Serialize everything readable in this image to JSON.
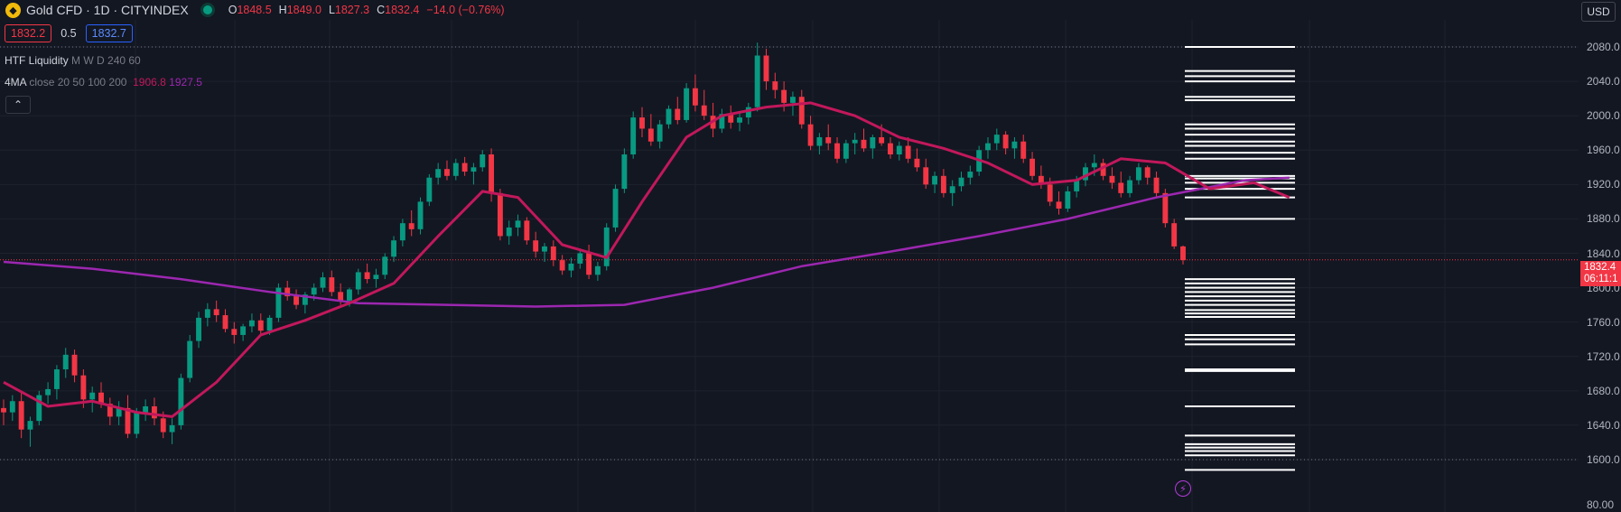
{
  "header": {
    "symbol_title": "Gold CFD · 1D · CITYINDEX",
    "logo_icon": "gold-bars-icon",
    "ohlc": {
      "o_label": "O",
      "o": "1848.5",
      "h_label": "H",
      "h": "1849.0",
      "l_label": "L",
      "l": "1827.3",
      "c_label": "C",
      "c": "1832.4",
      "change": "−14.0 (−0.76%)"
    }
  },
  "quote": {
    "sell": "1832.2",
    "spread": "0.5",
    "buy": "1832.7"
  },
  "indicators": {
    "htf": {
      "name": "HTF Liquidity",
      "params": "M W D 240 60"
    },
    "ma": {
      "name": "4MA",
      "params": "close 20 50 100 200",
      "v1": "1906.8",
      "v2": "1927.5"
    }
  },
  "collapse_icon": "chevron-up-icon",
  "currency_button": "USD",
  "price_axis": {
    "ticks": [
      "2080.0",
      "2040.0",
      "2000.0",
      "1960.0",
      "1920.0",
      "1880.0",
      "1840.0",
      "1800.0",
      "1760.0",
      "1720.0",
      "1680.0",
      "1640.0",
      "1600.0"
    ],
    "bottom_label": "80.00"
  },
  "last_price": {
    "value": "1832.4",
    "countdown": "06:11:1"
  },
  "bolt_icon": "lightning-icon",
  "colors": {
    "background": "#131722",
    "up": "#089981",
    "down": "#f23645",
    "ma_fast": "#c2185b",
    "ma_slow": "#9c27b0",
    "level_lines": "#ffffff"
  },
  "chart_data": {
    "type": "candlestick",
    "y_unit": "USD",
    "ylim": [
      1580,
      2095
    ],
    "last_close": 1832.4,
    "candles": [
      [
        1660,
        1670,
        1640,
        1655
      ],
      [
        1655,
        1675,
        1645,
        1668
      ],
      [
        1668,
        1680,
        1625,
        1635
      ],
      [
        1635,
        1650,
        1615,
        1645
      ],
      [
        1645,
        1680,
        1640,
        1675
      ],
      [
        1675,
        1690,
        1665,
        1682
      ],
      [
        1682,
        1710,
        1670,
        1705
      ],
      [
        1705,
        1730,
        1695,
        1722
      ],
      [
        1722,
        1728,
        1690,
        1698
      ],
      [
        1698,
        1705,
        1660,
        1670
      ],
      [
        1670,
        1685,
        1655,
        1678
      ],
      [
        1678,
        1690,
        1660,
        1665
      ],
      [
        1665,
        1672,
        1640,
        1650
      ],
      [
        1650,
        1668,
        1640,
        1660
      ],
      [
        1660,
        1675,
        1625,
        1630
      ],
      [
        1630,
        1660,
        1625,
        1655
      ],
      [
        1655,
        1670,
        1645,
        1662
      ],
      [
        1662,
        1672,
        1640,
        1648
      ],
      [
        1648,
        1656,
        1625,
        1632
      ],
      [
        1632,
        1648,
        1618,
        1640
      ],
      [
        1640,
        1700,
        1635,
        1695
      ],
      [
        1695,
        1745,
        1690,
        1738
      ],
      [
        1738,
        1772,
        1730,
        1765
      ],
      [
        1765,
        1782,
        1755,
        1775
      ],
      [
        1775,
        1785,
        1760,
        1768
      ],
      [
        1768,
        1775,
        1748,
        1752
      ],
      [
        1752,
        1760,
        1735,
        1745
      ],
      [
        1745,
        1758,
        1738,
        1755
      ],
      [
        1755,
        1770,
        1748,
        1762
      ],
      [
        1762,
        1770,
        1745,
        1750
      ],
      [
        1750,
        1768,
        1745,
        1765
      ],
      [
        1765,
        1805,
        1760,
        1800
      ],
      [
        1800,
        1808,
        1785,
        1790
      ],
      [
        1790,
        1798,
        1775,
        1780
      ],
      [
        1780,
        1795,
        1770,
        1792
      ],
      [
        1792,
        1805,
        1785,
        1800
      ],
      [
        1800,
        1818,
        1795,
        1812
      ],
      [
        1812,
        1820,
        1790,
        1795
      ],
      [
        1795,
        1805,
        1780,
        1785
      ],
      [
        1785,
        1800,
        1778,
        1798
      ],
      [
        1798,
        1822,
        1792,
        1818
      ],
      [
        1818,
        1828,
        1805,
        1810
      ],
      [
        1810,
        1822,
        1800,
        1815
      ],
      [
        1815,
        1840,
        1810,
        1836
      ],
      [
        1836,
        1860,
        1830,
        1855
      ],
      [
        1855,
        1880,
        1848,
        1875
      ],
      [
        1875,
        1890,
        1860,
        1868
      ],
      [
        1868,
        1905,
        1862,
        1900
      ],
      [
        1900,
        1932,
        1895,
        1928
      ],
      [
        1928,
        1945,
        1920,
        1938
      ],
      [
        1938,
        1948,
        1925,
        1930
      ],
      [
        1930,
        1950,
        1925,
        1945
      ],
      [
        1945,
        1952,
        1930,
        1935
      ],
      [
        1935,
        1945,
        1920,
        1940
      ],
      [
        1940,
        1960,
        1935,
        1955
      ],
      [
        1955,
        1962,
        1900,
        1910
      ],
      [
        1910,
        1915,
        1855,
        1860
      ],
      [
        1860,
        1878,
        1850,
        1870
      ],
      [
        1870,
        1885,
        1860,
        1878
      ],
      [
        1878,
        1882,
        1850,
        1855
      ],
      [
        1855,
        1865,
        1835,
        1842
      ],
      [
        1842,
        1852,
        1830,
        1848
      ],
      [
        1848,
        1855,
        1825,
        1832
      ],
      [
        1832,
        1838,
        1815,
        1820
      ],
      [
        1820,
        1835,
        1812,
        1828
      ],
      [
        1828,
        1845,
        1822,
        1840
      ],
      [
        1840,
        1850,
        1810,
        1815
      ],
      [
        1815,
        1830,
        1808,
        1825
      ],
      [
        1825,
        1875,
        1820,
        1870
      ],
      [
        1870,
        1920,
        1865,
        1915
      ],
      [
        1915,
        1962,
        1910,
        1955
      ],
      [
        1955,
        2005,
        1950,
        1998
      ],
      [
        1998,
        2010,
        1975,
        1985
      ],
      [
        1985,
        2002,
        1965,
        1970
      ],
      [
        1970,
        1995,
        1962,
        1990
      ],
      [
        1990,
        2012,
        1985,
        2008
      ],
      [
        2008,
        2022,
        1990,
        1995
      ],
      [
        1995,
        2038,
        1992,
        2032
      ],
      [
        2032,
        2048,
        2005,
        2012
      ],
      [
        2012,
        2030,
        1995,
        2000
      ],
      [
        2000,
        2015,
        1975,
        1985
      ],
      [
        1985,
        2008,
        1980,
        2002
      ],
      [
        2002,
        2012,
        1985,
        1992
      ],
      [
        1992,
        2005,
        1982,
        1998
      ],
      [
        1998,
        2015,
        1990,
        2010
      ],
      [
        2010,
        2085,
        2005,
        2070
      ],
      [
        2070,
        2078,
        2030,
        2040
      ],
      [
        2040,
        2050,
        2020,
        2030
      ],
      [
        2030,
        2040,
        2005,
        2015
      ],
      [
        2015,
        2028,
        2000,
        2022
      ],
      [
        2022,
        2030,
        1985,
        1990
      ],
      [
        1990,
        2000,
        1960,
        1965
      ],
      [
        1965,
        1980,
        1955,
        1975
      ],
      [
        1975,
        1990,
        1960,
        1968
      ],
      [
        1968,
        1975,
        1945,
        1950
      ],
      [
        1950,
        1972,
        1945,
        1968
      ],
      [
        1968,
        1980,
        1955,
        1972
      ],
      [
        1972,
        1985,
        1958,
        1962
      ],
      [
        1962,
        1978,
        1950,
        1975
      ],
      [
        1975,
        1990,
        1965,
        1968
      ],
      [
        1968,
        1975,
        1950,
        1955
      ],
      [
        1955,
        1970,
        1948,
        1965
      ],
      [
        1965,
        1975,
        1945,
        1950
      ],
      [
        1950,
        1962,
        1935,
        1940
      ],
      [
        1940,
        1950,
        1915,
        1920
      ],
      [
        1920,
        1935,
        1910,
        1930
      ],
      [
        1930,
        1938,
        1905,
        1910
      ],
      [
        1910,
        1925,
        1895,
        1918
      ],
      [
        1918,
        1935,
        1912,
        1928
      ],
      [
        1928,
        1942,
        1920,
        1935
      ],
      [
        1935,
        1965,
        1930,
        1960
      ],
      [
        1960,
        1975,
        1950,
        1968
      ],
      [
        1968,
        1985,
        1960,
        1978
      ],
      [
        1978,
        1982,
        1955,
        1962
      ],
      [
        1962,
        1975,
        1950,
        1970
      ],
      [
        1970,
        1978,
        1945,
        1950
      ],
      [
        1950,
        1958,
        1925,
        1930
      ],
      [
        1930,
        1942,
        1915,
        1920
      ],
      [
        1920,
        1928,
        1895,
        1900
      ],
      [
        1900,
        1912,
        1885,
        1892
      ],
      [
        1892,
        1918,
        1888,
        1912
      ],
      [
        1912,
        1930,
        1905,
        1925
      ],
      [
        1925,
        1945,
        1918,
        1940
      ],
      [
        1940,
        1955,
        1930,
        1945
      ],
      [
        1945,
        1950,
        1925,
        1930
      ],
      [
        1930,
        1940,
        1915,
        1922
      ],
      [
        1922,
        1935,
        1905,
        1910
      ],
      [
        1910,
        1930,
        1905,
        1925
      ],
      [
        1925,
        1945,
        1920,
        1940
      ],
      [
        1940,
        1942,
        1920,
        1928
      ],
      [
        1928,
        1935,
        1905,
        1910
      ],
      [
        1910,
        1915,
        1870,
        1875
      ],
      [
        1875,
        1880,
        1845,
        1848
      ],
      [
        1848,
        1849,
        1827,
        1832
      ]
    ],
    "ma_fast": [
      [
        0,
        1690
      ],
      [
        5,
        1662
      ],
      [
        10,
        1668
      ],
      [
        15,
        1655
      ],
      [
        19,
        1650
      ],
      [
        24,
        1690
      ],
      [
        29,
        1745
      ],
      [
        34,
        1762
      ],
      [
        39,
        1782
      ],
      [
        44,
        1805
      ],
      [
        49,
        1860
      ],
      [
        54,
        1912
      ],
      [
        58,
        1905
      ],
      [
        63,
        1850
      ],
      [
        68,
        1835
      ],
      [
        72,
        1900
      ],
      [
        77,
        1975
      ],
      [
        81,
        2000
      ],
      [
        86,
        2010
      ],
      [
        91,
        2015
      ],
      [
        96,
        2000
      ],
      [
        101,
        1975
      ],
      [
        106,
        1962
      ],
      [
        111,
        1945
      ],
      [
        116,
        1920
      ],
      [
        121,
        1925
      ],
      [
        126,
        1950
      ],
      [
        131,
        1945
      ],
      [
        136,
        1915
      ],
      [
        141,
        1922
      ],
      [
        145,
        1905
      ]
    ],
    "ma_slow": [
      [
        0,
        1830
      ],
      [
        10,
        1822
      ],
      [
        20,
        1810
      ],
      [
        30,
        1795
      ],
      [
        40,
        1782
      ],
      [
        50,
        1780
      ],
      [
        60,
        1778
      ],
      [
        70,
        1780
      ],
      [
        80,
        1800
      ],
      [
        90,
        1825
      ],
      [
        100,
        1842
      ],
      [
        110,
        1860
      ],
      [
        120,
        1880
      ],
      [
        130,
        1905
      ],
      [
        140,
        1925
      ],
      [
        145,
        1928
      ]
    ],
    "liquidity_levels": [
      2080,
      2052,
      2046,
      2040,
      2022,
      2018,
      1990,
      1985,
      1978,
      1970,
      1965,
      1957,
      1950,
      1930,
      1927,
      1922,
      1915,
      1905,
      1880,
      1810,
      1805,
      1800,
      1795,
      1790,
      1785,
      1780,
      1774,
      1770,
      1766,
      1745,
      1740,
      1734,
      1705,
      1703,
      1662,
      1628,
      1618,
      1614,
      1610,
      1605,
      1588
    ]
  }
}
